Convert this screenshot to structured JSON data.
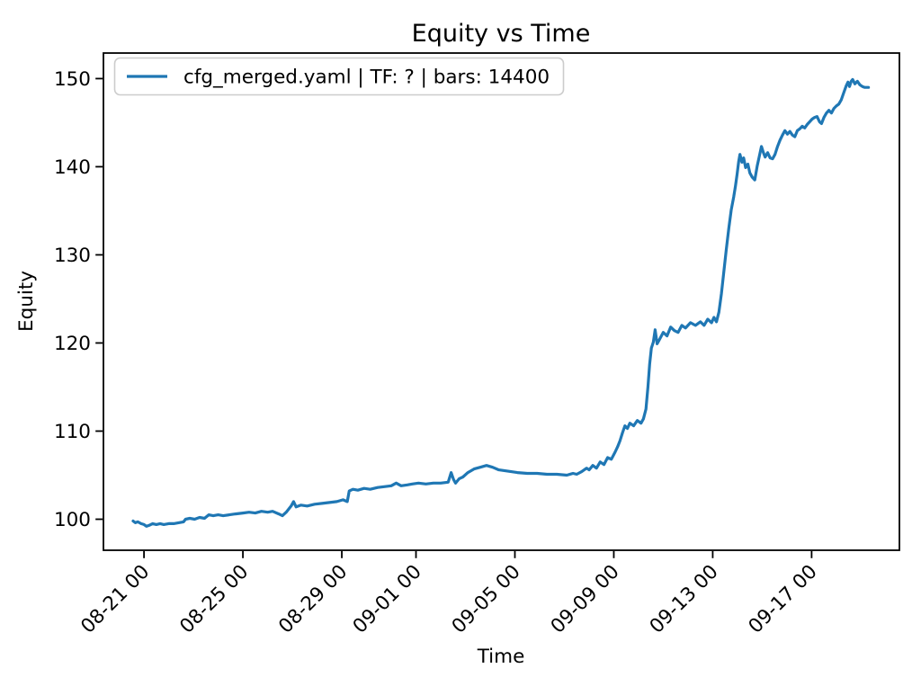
{
  "figure": {
    "background": "#ffffff",
    "spine_color": "#000000"
  },
  "chart_data": {
    "type": "line",
    "title": "Equity vs Time",
    "xlabel": "Time",
    "ylabel": "Equity",
    "grid": false,
    "legend": {
      "position": "upper left",
      "entries": [
        {
          "label": "cfg_merged.yaml | TF: ? | bars: 14400",
          "color": "#1f77b4"
        }
      ]
    },
    "x_axis": {
      "unit": "days after 08-21 00:00",
      "tick_days": [
        0,
        4,
        8,
        11,
        15,
        19,
        23,
        27
      ],
      "tick_labels": [
        "08-21 00",
        "08-25 00",
        "08-29 00",
        "09-01 00",
        "09-05 00",
        "09-09 00",
        "09-13 00",
        "09-17 00"
      ],
      "lim_days": [
        -1.64,
        30.55
      ]
    },
    "y_axis": {
      "ticks": [
        100,
        110,
        120,
        130,
        140,
        150
      ],
      "lim": [
        96.48,
        152.9
      ]
    },
    "series": [
      {
        "name": "cfg_merged.yaml | TF: ? | bars: 14400",
        "color": "#1f77b4",
        "linewidth": 3.2,
        "points_day_equity": [
          [
            -0.44,
            99.8
          ],
          [
            -0.35,
            99.6
          ],
          [
            -0.25,
            99.7
          ],
          [
            -0.12,
            99.5
          ],
          [
            0.0,
            99.4
          ],
          [
            0.1,
            99.2
          ],
          [
            0.2,
            99.3
          ],
          [
            0.35,
            99.5
          ],
          [
            0.5,
            99.4
          ],
          [
            0.65,
            99.5
          ],
          [
            0.8,
            99.4
          ],
          [
            1.0,
            99.5
          ],
          [
            1.2,
            99.5
          ],
          [
            1.4,
            99.6
          ],
          [
            1.6,
            99.7
          ],
          [
            1.68,
            100.0
          ],
          [
            1.85,
            100.1
          ],
          [
            2.05,
            100.0
          ],
          [
            2.25,
            100.2
          ],
          [
            2.45,
            100.1
          ],
          [
            2.62,
            100.5
          ],
          [
            2.8,
            100.4
          ],
          [
            3.0,
            100.5
          ],
          [
            3.2,
            100.4
          ],
          [
            3.45,
            100.5
          ],
          [
            3.7,
            100.6
          ],
          [
            4.0,
            100.7
          ],
          [
            4.25,
            100.8
          ],
          [
            4.5,
            100.7
          ],
          [
            4.75,
            100.9
          ],
          [
            5.0,
            100.8
          ],
          [
            5.2,
            100.9
          ],
          [
            5.45,
            100.6
          ],
          [
            5.6,
            100.4
          ],
          [
            5.75,
            100.8
          ],
          [
            5.95,
            101.5
          ],
          [
            6.05,
            102.0
          ],
          [
            6.15,
            101.4
          ],
          [
            6.35,
            101.6
          ],
          [
            6.6,
            101.5
          ],
          [
            6.9,
            101.7
          ],
          [
            7.2,
            101.8
          ],
          [
            7.5,
            101.9
          ],
          [
            7.8,
            102.0
          ],
          [
            8.05,
            102.2
          ],
          [
            8.22,
            102.0
          ],
          [
            8.3,
            103.2
          ],
          [
            8.45,
            103.4
          ],
          [
            8.65,
            103.3
          ],
          [
            8.9,
            103.5
          ],
          [
            9.15,
            103.4
          ],
          [
            9.45,
            103.6
          ],
          [
            9.75,
            103.7
          ],
          [
            10.0,
            103.8
          ],
          [
            10.2,
            104.1
          ],
          [
            10.4,
            103.8
          ],
          [
            10.65,
            103.9
          ],
          [
            10.85,
            104.0
          ],
          [
            11.1,
            104.1
          ],
          [
            11.4,
            104.0
          ],
          [
            11.7,
            104.1
          ],
          [
            12.0,
            104.1
          ],
          [
            12.3,
            104.2
          ],
          [
            12.42,
            105.3
          ],
          [
            12.52,
            104.5
          ],
          [
            12.6,
            104.1
          ],
          [
            12.75,
            104.6
          ],
          [
            12.9,
            104.8
          ],
          [
            13.1,
            105.3
          ],
          [
            13.35,
            105.7
          ],
          [
            13.6,
            105.9
          ],
          [
            13.85,
            106.1
          ],
          [
            14.1,
            105.9
          ],
          [
            14.35,
            105.6
          ],
          [
            14.6,
            105.5
          ],
          [
            14.85,
            105.4
          ],
          [
            15.1,
            105.3
          ],
          [
            15.5,
            105.2
          ],
          [
            15.9,
            105.2
          ],
          [
            16.3,
            105.1
          ],
          [
            16.7,
            105.1
          ],
          [
            17.1,
            105.0
          ],
          [
            17.35,
            105.2
          ],
          [
            17.5,
            105.1
          ],
          [
            17.7,
            105.4
          ],
          [
            17.9,
            105.8
          ],
          [
            18.0,
            105.6
          ],
          [
            18.15,
            106.1
          ],
          [
            18.3,
            105.8
          ],
          [
            18.45,
            106.5
          ],
          [
            18.6,
            106.2
          ],
          [
            18.75,
            107.0
          ],
          [
            18.9,
            106.8
          ],
          [
            19.05,
            107.6
          ],
          [
            19.15,
            108.2
          ],
          [
            19.25,
            108.9
          ],
          [
            19.35,
            109.8
          ],
          [
            19.45,
            110.6
          ],
          [
            19.55,
            110.3
          ],
          [
            19.65,
            110.9
          ],
          [
            19.8,
            110.6
          ],
          [
            19.95,
            111.2
          ],
          [
            20.1,
            110.9
          ],
          [
            20.2,
            111.4
          ],
          [
            20.3,
            112.5
          ],
          [
            20.38,
            115.0
          ],
          [
            20.45,
            117.6
          ],
          [
            20.52,
            119.4
          ],
          [
            20.6,
            120.1
          ],
          [
            20.67,
            121.5
          ],
          [
            20.75,
            119.9
          ],
          [
            20.85,
            120.4
          ],
          [
            21.0,
            121.2
          ],
          [
            21.15,
            120.8
          ],
          [
            21.3,
            121.8
          ],
          [
            21.45,
            121.4
          ],
          [
            21.6,
            121.2
          ],
          [
            21.75,
            122.0
          ],
          [
            21.9,
            121.7
          ],
          [
            22.1,
            122.3
          ],
          [
            22.3,
            122.0
          ],
          [
            22.5,
            122.4
          ],
          [
            22.65,
            122.0
          ],
          [
            22.8,
            122.7
          ],
          [
            22.95,
            122.3
          ],
          [
            23.05,
            122.9
          ],
          [
            23.15,
            122.4
          ],
          [
            23.25,
            123.5
          ],
          [
            23.35,
            125.6
          ],
          [
            23.45,
            128.1
          ],
          [
            23.55,
            130.6
          ],
          [
            23.65,
            133.0
          ],
          [
            23.75,
            135.1
          ],
          [
            23.85,
            136.6
          ],
          [
            23.92,
            137.8
          ],
          [
            23.99,
            139.2
          ],
          [
            24.05,
            140.6
          ],
          [
            24.1,
            141.4
          ],
          [
            24.18,
            140.5
          ],
          [
            24.25,
            141.0
          ],
          [
            24.33,
            139.9
          ],
          [
            24.42,
            140.3
          ],
          [
            24.5,
            139.3
          ],
          [
            24.6,
            138.8
          ],
          [
            24.7,
            138.5
          ],
          [
            24.8,
            140.1
          ],
          [
            24.9,
            141.4
          ],
          [
            24.97,
            142.3
          ],
          [
            25.05,
            141.6
          ],
          [
            25.12,
            141.1
          ],
          [
            25.22,
            141.6
          ],
          [
            25.32,
            141.0
          ],
          [
            25.42,
            140.9
          ],
          [
            25.52,
            141.4
          ],
          [
            25.62,
            142.3
          ],
          [
            25.72,
            143.0
          ],
          [
            25.82,
            143.6
          ],
          [
            25.92,
            144.1
          ],
          [
            26.02,
            143.7
          ],
          [
            26.12,
            144.0
          ],
          [
            26.22,
            143.6
          ],
          [
            26.32,
            143.4
          ],
          [
            26.42,
            144.1
          ],
          [
            26.52,
            144.3
          ],
          [
            26.62,
            144.6
          ],
          [
            26.72,
            144.4
          ],
          [
            26.82,
            144.8
          ],
          [
            26.92,
            145.1
          ],
          [
            27.02,
            145.4
          ],
          [
            27.12,
            145.6
          ],
          [
            27.22,
            145.7
          ],
          [
            27.32,
            145.1
          ],
          [
            27.4,
            144.9
          ],
          [
            27.5,
            145.6
          ],
          [
            27.6,
            146.1
          ],
          [
            27.7,
            146.4
          ],
          [
            27.8,
            146.1
          ],
          [
            27.9,
            146.6
          ],
          [
            28.0,
            146.9
          ],
          [
            28.1,
            147.1
          ],
          [
            28.2,
            147.6
          ],
          [
            28.3,
            148.4
          ],
          [
            28.4,
            149.2
          ],
          [
            28.47,
            149.6
          ],
          [
            28.53,
            149.1
          ],
          [
            28.6,
            149.7
          ],
          [
            28.66,
            149.9
          ],
          [
            28.75,
            149.4
          ],
          [
            28.85,
            149.7
          ],
          [
            28.95,
            149.3
          ],
          [
            29.05,
            149.1
          ],
          [
            29.15,
            149.0
          ],
          [
            29.3,
            149.0
          ]
        ]
      }
    ]
  }
}
